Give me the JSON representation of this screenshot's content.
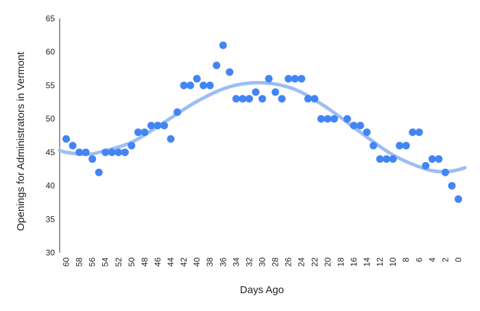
{
  "chart_data": {
    "type": "scatter",
    "x_label": "Days Ago",
    "y_label": "Openings for Administrators in Vermont",
    "x": [
      60,
      59,
      58,
      57,
      56,
      55,
      54,
      53,
      52,
      51,
      50,
      49,
      48,
      47,
      46,
      45,
      44,
      43,
      42,
      41,
      40,
      39,
      38,
      37,
      36,
      35,
      34,
      33,
      32,
      31,
      30,
      29,
      28,
      27,
      26,
      25,
      24,
      23,
      22,
      21,
      20,
      19,
      17,
      16,
      15,
      14,
      13,
      12,
      11,
      10,
      9,
      8,
      7,
      6,
      5,
      4,
      3,
      2,
      1,
      0
    ],
    "values": [
      47,
      46,
      45,
      45,
      44,
      42,
      45,
      45,
      45,
      45,
      46,
      48,
      48,
      49,
      49,
      49,
      47,
      51,
      55,
      55,
      56,
      55,
      55,
      58,
      61,
      57,
      53,
      53,
      53,
      54,
      53,
      56,
      54,
      53,
      56,
      56,
      56,
      53,
      53,
      50,
      50,
      50,
      50,
      49,
      49,
      48,
      46,
      44,
      44,
      44,
      46,
      46,
      48,
      48,
      43,
      44,
      44,
      42,
      40,
      38
    ],
    "color": "#4285f4",
    "trendline": {
      "color": "#9dbdf5",
      "x": [
        61,
        60,
        57,
        55,
        50,
        45,
        40,
        35,
        30,
        25,
        20,
        15,
        10,
        5,
        2,
        0,
        -1
      ],
      "values": [
        45.3,
        45.0,
        44.7,
        45.0,
        46.5,
        49.5,
        52.6,
        54.8,
        55.4,
        54.4,
        51.6,
        48.0,
        44.6,
        42.5,
        42.1,
        42.4,
        42.7
      ]
    },
    "xlim": [
      61,
      -1
    ],
    "xticks": [
      60,
      58,
      56,
      54,
      52,
      50,
      48,
      46,
      44,
      42,
      40,
      38,
      36,
      34,
      32,
      30,
      28,
      26,
      24,
      22,
      20,
      18,
      16,
      14,
      12,
      10,
      8,
      6,
      4,
      2,
      0
    ],
    "ylim": [
      30,
      65
    ],
    "yticks": [
      30,
      35,
      40,
      45,
      50,
      55,
      60,
      65
    ],
    "grid": false
  }
}
